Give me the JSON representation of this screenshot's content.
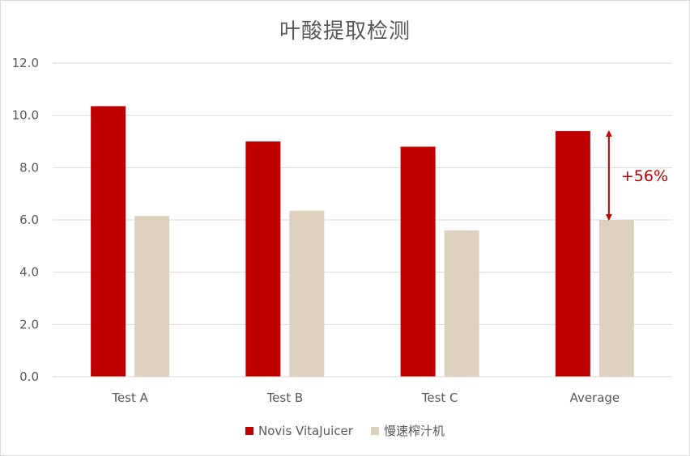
{
  "chart_data": {
    "type": "bar",
    "title": "叶酸提取检测",
    "xlabel": "",
    "ylabel": "",
    "categories": [
      "Test A",
      "Test B",
      "Test C",
      "Average"
    ],
    "series": [
      {
        "name": "Novis VitaJuicer",
        "color": "#c00000",
        "values": [
          10.35,
          9.0,
          8.8,
          9.4
        ]
      },
      {
        "name": "慢速榨汁机",
        "color": "#ddd0bf",
        "values": [
          6.15,
          6.35,
          5.6,
          6.0
        ]
      }
    ],
    "ylim": [
      0,
      12
    ],
    "yticks": [
      "0.0",
      "2.0",
      "4.0",
      "6.0",
      "8.0",
      "10.0",
      "12.0"
    ],
    "grid": true,
    "legend_position": "bottom",
    "annotations": [
      {
        "text": "+56%",
        "category": "Average",
        "from_value": 6.0,
        "to_value": 9.4,
        "color": "#c00000"
      }
    ]
  }
}
